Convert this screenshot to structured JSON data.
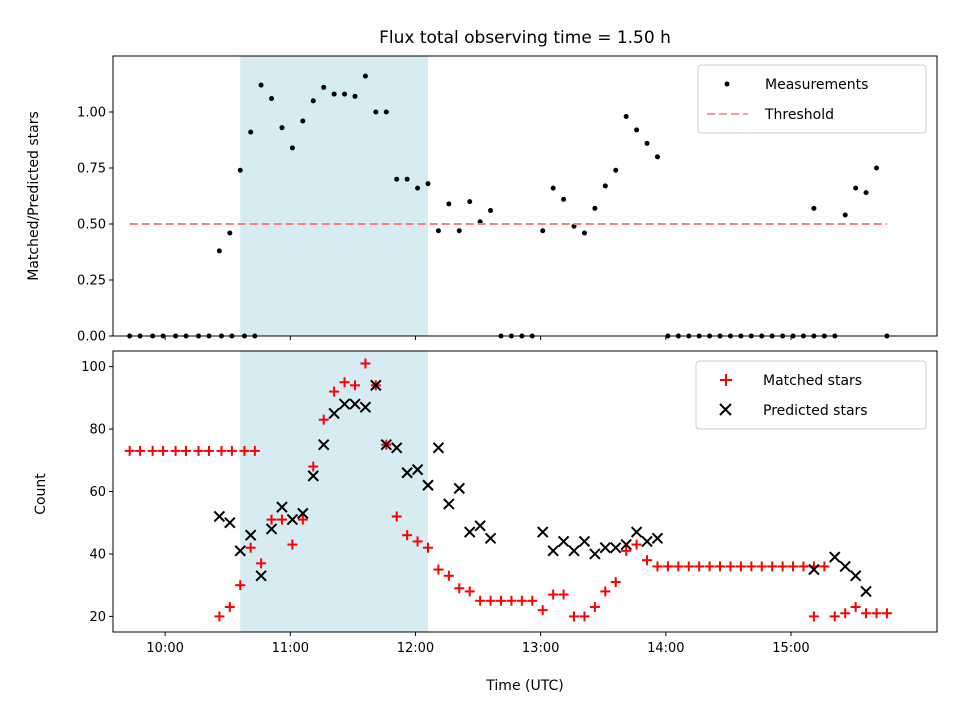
{
  "chart_data": [
    {
      "type": "scatter",
      "title": "Flux total observing time = 1.50 h",
      "xlabel": "",
      "ylabel": "Matched/Predicted stars",
      "x_unit": "time (UTC)",
      "xlim": [
        "09:35",
        "16:10"
      ],
      "ylim": [
        0,
        1.25
      ],
      "yticks": [
        0.0,
        0.25,
        0.5,
        0.75,
        1.0
      ],
      "ytick_labels": [
        "0.00",
        "0.25",
        "0.50",
        "0.75",
        "1.00"
      ],
      "shaded_region": {
        "from": "10:36",
        "to": "12:06",
        "color": "#add8e6"
      },
      "legend": {
        "position": "upper right",
        "entries": [
          "Measurements",
          "Threshold"
        ]
      },
      "series": [
        {
          "name": "Measurements",
          "marker": "dot",
          "color": "#000000",
          "points": [
            [
              "09:43",
              0
            ],
            [
              "09:48",
              0
            ],
            [
              "09:54",
              0
            ],
            [
              "09:59",
              0
            ],
            [
              "10:05",
              0
            ],
            [
              "10:10",
              0
            ],
            [
              "10:16",
              0
            ],
            [
              "10:21",
              0
            ],
            [
              "10:27",
              0
            ],
            [
              "10:32",
              0
            ],
            [
              "10:38",
              0
            ],
            [
              "10:43",
              0
            ],
            [
              "10:26",
              0.38
            ],
            [
              "10:31",
              0.46
            ],
            [
              "10:36",
              0.74
            ],
            [
              "10:41",
              0.91
            ],
            [
              "10:46",
              1.12
            ],
            [
              "10:51",
              1.06
            ],
            [
              "10:56",
              0.93
            ],
            [
              "11:01",
              0.84
            ],
            [
              "11:06",
              0.96
            ],
            [
              "11:11",
              1.05
            ],
            [
              "11:16",
              1.11
            ],
            [
              "11:21",
              1.08
            ],
            [
              "11:26",
              1.08
            ],
            [
              "11:31",
              1.07
            ],
            [
              "11:36",
              1.16
            ],
            [
              "11:41",
              1.0
            ],
            [
              "11:46",
              1.0
            ],
            [
              "11:51",
              0.7
            ],
            [
              "11:56",
              0.7
            ],
            [
              "12:01",
              0.66
            ],
            [
              "12:06",
              0.68
            ],
            [
              "12:11",
              0.47
            ],
            [
              "12:16",
              0.59
            ],
            [
              "12:21",
              0.47
            ],
            [
              "12:26",
              0.6
            ],
            [
              "12:31",
              0.51
            ],
            [
              "12:36",
              0.56
            ],
            [
              "12:41",
              0
            ],
            [
              "12:46",
              0
            ],
            [
              "12:51",
              0
            ],
            [
              "12:56",
              0
            ],
            [
              "13:01",
              0.47
            ],
            [
              "13:06",
              0.66
            ],
            [
              "13:11",
              0.61
            ],
            [
              "13:16",
              0.49
            ],
            [
              "13:21",
              0.46
            ],
            [
              "13:26",
              0.57
            ],
            [
              "13:31",
              0.67
            ],
            [
              "13:36",
              0.74
            ],
            [
              "13:41",
              0.98
            ],
            [
              "13:46",
              0.92
            ],
            [
              "13:51",
              0.86
            ],
            [
              "13:56",
              0.8
            ],
            [
              "14:01",
              0
            ],
            [
              "14:06",
              0
            ],
            [
              "14:11",
              0
            ],
            [
              "14:16",
              0
            ],
            [
              "14:21",
              0
            ],
            [
              "14:26",
              0
            ],
            [
              "14:31",
              0
            ],
            [
              "14:36",
              0
            ],
            [
              "14:41",
              0
            ],
            [
              "14:46",
              0
            ],
            [
              "14:51",
              0
            ],
            [
              "14:56",
              0
            ],
            [
              "15:01",
              0
            ],
            [
              "15:06",
              0
            ],
            [
              "15:11",
              0
            ],
            [
              "15:16",
              0
            ],
            [
              "15:11",
              0.57
            ],
            [
              "15:21",
              0
            ],
            [
              "15:26",
              0.54
            ],
            [
              "15:31",
              0.66
            ],
            [
              "15:36",
              0.64
            ],
            [
              "15:41",
              0.75
            ],
            [
              "15:46",
              0
            ]
          ]
        },
        {
          "name": "Threshold",
          "marker": "dashed-line",
          "color": "#ff7f7f",
          "points": [
            [
              "09:43",
              0.5
            ],
            [
              "15:46",
              0.5
            ]
          ]
        }
      ]
    },
    {
      "type": "scatter",
      "title": "",
      "xlabel": "Time (UTC)",
      "ylabel": "Count",
      "xlim": [
        "09:35",
        "16:10"
      ],
      "ylim": [
        15,
        105
      ],
      "yticks": [
        20,
        40,
        60,
        80,
        100
      ],
      "ytick_labels": [
        "20",
        "40",
        "60",
        "80",
        "100"
      ],
      "xticks": [
        "10:00",
        "11:00",
        "12:00",
        "13:00",
        "14:00",
        "15:00"
      ],
      "xtick_labels": [
        "10:00",
        "11:00",
        "12:00",
        "13:00",
        "14:00",
        "15:00"
      ],
      "shaded_region": {
        "from": "10:36",
        "to": "12:06",
        "color": "#add8e6"
      },
      "legend": {
        "position": "upper right",
        "entries": [
          "Matched stars",
          "Predicted stars"
        ]
      },
      "series": [
        {
          "name": "Matched stars",
          "marker": "plus",
          "color": "#ff0000",
          "points": [
            [
              "09:43",
              73
            ],
            [
              "09:48",
              73
            ],
            [
              "09:54",
              73
            ],
            [
              "09:59",
              73
            ],
            [
              "10:05",
              73
            ],
            [
              "10:10",
              73
            ],
            [
              "10:16",
              73
            ],
            [
              "10:21",
              73
            ],
            [
              "10:27",
              73
            ],
            [
              "10:32",
              73
            ],
            [
              "10:38",
              73
            ],
            [
              "10:43",
              73
            ],
            [
              "10:26",
              20
            ],
            [
              "10:31",
              23
            ],
            [
              "10:36",
              30
            ],
            [
              "10:41",
              42
            ],
            [
              "10:46",
              37
            ],
            [
              "10:51",
              51
            ],
            [
              "10:56",
              51
            ],
            [
              "11:01",
              43
            ],
            [
              "11:06",
              51
            ],
            [
              "11:11",
              68
            ],
            [
              "11:16",
              83
            ],
            [
              "11:21",
              92
            ],
            [
              "11:26",
              95
            ],
            [
              "11:31",
              94
            ],
            [
              "11:36",
              101
            ],
            [
              "11:41",
              94
            ],
            [
              "11:46",
              75
            ],
            [
              "11:51",
              52
            ],
            [
              "11:56",
              46
            ],
            [
              "12:01",
              44
            ],
            [
              "12:06",
              42
            ],
            [
              "12:11",
              35
            ],
            [
              "12:16",
              33
            ],
            [
              "12:21",
              29
            ],
            [
              "12:26",
              28
            ],
            [
              "12:31",
              25
            ],
            [
              "12:36",
              25
            ],
            [
              "12:41",
              25
            ],
            [
              "12:46",
              25
            ],
            [
              "12:51",
              25
            ],
            [
              "12:56",
              25
            ],
            [
              "13:01",
              22
            ],
            [
              "13:06",
              27
            ],
            [
              "13:11",
              27
            ],
            [
              "13:16",
              20
            ],
            [
              "13:21",
              20
            ],
            [
              "13:26",
              23
            ],
            [
              "13:31",
              28
            ],
            [
              "13:36",
              31
            ],
            [
              "13:41",
              41
            ],
            [
              "13:46",
              43
            ],
            [
              "13:51",
              38
            ],
            [
              "13:56",
              36
            ],
            [
              "14:01",
              36
            ],
            [
              "14:06",
              36
            ],
            [
              "14:11",
              36
            ],
            [
              "14:16",
              36
            ],
            [
              "14:21",
              36
            ],
            [
              "14:26",
              36
            ],
            [
              "14:31",
              36
            ],
            [
              "14:36",
              36
            ],
            [
              "14:41",
              36
            ],
            [
              "14:46",
              36
            ],
            [
              "14:51",
              36
            ],
            [
              "14:56",
              36
            ],
            [
              "15:01",
              36
            ],
            [
              "15:06",
              36
            ],
            [
              "15:11",
              36
            ],
            [
              "15:16",
              36
            ],
            [
              "15:11",
              20
            ],
            [
              "15:21",
              20
            ],
            [
              "15:26",
              21
            ],
            [
              "15:31",
              23
            ],
            [
              "15:36",
              21
            ],
            [
              "15:41",
              21
            ],
            [
              "15:46",
              21
            ]
          ]
        },
        {
          "name": "Predicted stars",
          "marker": "x",
          "color": "#000000",
          "points": [
            [
              "10:26",
              52
            ],
            [
              "10:31",
              50
            ],
            [
              "10:36",
              41
            ],
            [
              "10:41",
              46
            ],
            [
              "10:46",
              33
            ],
            [
              "10:51",
              48
            ],
            [
              "10:56",
              55
            ],
            [
              "11:01",
              51
            ],
            [
              "11:06",
              53
            ],
            [
              "11:11",
              65
            ],
            [
              "11:16",
              75
            ],
            [
              "11:21",
              85
            ],
            [
              "11:26",
              88
            ],
            [
              "11:31",
              88
            ],
            [
              "11:36",
              87
            ],
            [
              "11:41",
              94
            ],
            [
              "11:46",
              75
            ],
            [
              "11:51",
              74
            ],
            [
              "11:56",
              66
            ],
            [
              "12:01",
              67
            ],
            [
              "12:06",
              62
            ],
            [
              "12:11",
              74
            ],
            [
              "12:16",
              56
            ],
            [
              "12:21",
              61
            ],
            [
              "12:26",
              47
            ],
            [
              "12:31",
              49
            ],
            [
              "12:36",
              45
            ],
            [
              "13:01",
              47
            ],
            [
              "13:06",
              41
            ],
            [
              "13:11",
              44
            ],
            [
              "13:16",
              41
            ],
            [
              "13:21",
              44
            ],
            [
              "13:26",
              40
            ],
            [
              "13:31",
              42
            ],
            [
              "13:36",
              42
            ],
            [
              "13:41",
              43
            ],
            [
              "13:46",
              47
            ],
            [
              "13:51",
              44
            ],
            [
              "13:56",
              45
            ],
            [
              "15:11",
              35
            ],
            [
              "15:21",
              39
            ],
            [
              "15:26",
              36
            ],
            [
              "15:31",
              33
            ],
            [
              "15:36",
              28
            ]
          ]
        }
      ]
    }
  ]
}
